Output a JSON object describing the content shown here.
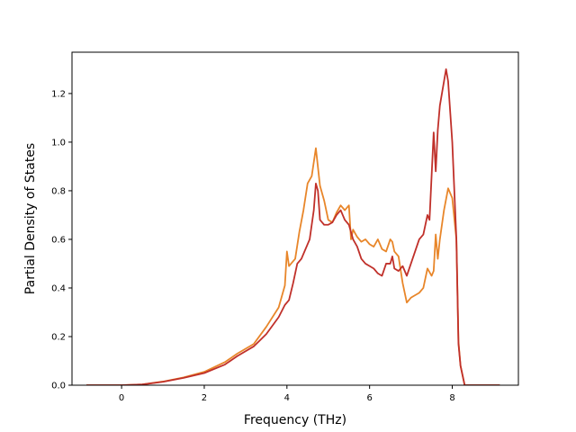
{
  "chart_data": {
    "type": "line",
    "xlabel": "Frequency (THz)",
    "ylabel": "Partial Density of States",
    "xlim": [
      -1.2,
      9.6
    ],
    "ylim": [
      0.0,
      1.37
    ],
    "xticks": [
      0,
      2,
      4,
      6,
      8
    ],
    "yticks": [
      0.0,
      0.2,
      0.4,
      0.6,
      0.8,
      1.0,
      1.2
    ],
    "xtick_labels": [
      "0",
      "2",
      "4",
      "6",
      "8"
    ],
    "ytick_labels": [
      "0.0",
      "0.2",
      "0.4",
      "0.6",
      "0.8",
      "1.0",
      "1.2"
    ],
    "grid": false,
    "series": [
      {
        "color": "#e8862a",
        "points": [
          [
            -0.85,
            0.0
          ],
          [
            0.0,
            0.0
          ],
          [
            0.5,
            0.003
          ],
          [
            1.0,
            0.015
          ],
          [
            1.5,
            0.032
          ],
          [
            2.0,
            0.055
          ],
          [
            2.5,
            0.095
          ],
          [
            2.8,
            0.13
          ],
          [
            3.2,
            0.17
          ],
          [
            3.5,
            0.24
          ],
          [
            3.8,
            0.32
          ],
          [
            3.95,
            0.41
          ],
          [
            4.0,
            0.55
          ],
          [
            4.05,
            0.49
          ],
          [
            4.1,
            0.5
          ],
          [
            4.2,
            0.52
          ],
          [
            4.3,
            0.63
          ],
          [
            4.4,
            0.72
          ],
          [
            4.5,
            0.83
          ],
          [
            4.6,
            0.86
          ],
          [
            4.7,
            0.975
          ],
          [
            4.8,
            0.82
          ],
          [
            4.9,
            0.76
          ],
          [
            5.0,
            0.68
          ],
          [
            5.1,
            0.67
          ],
          [
            5.2,
            0.71
          ],
          [
            5.3,
            0.74
          ],
          [
            5.4,
            0.72
          ],
          [
            5.5,
            0.74
          ],
          [
            5.55,
            0.6
          ],
          [
            5.6,
            0.64
          ],
          [
            5.7,
            0.61
          ],
          [
            5.8,
            0.59
          ],
          [
            5.9,
            0.6
          ],
          [
            6.0,
            0.58
          ],
          [
            6.1,
            0.57
          ],
          [
            6.2,
            0.6
          ],
          [
            6.3,
            0.56
          ],
          [
            6.4,
            0.55
          ],
          [
            6.5,
            0.6
          ],
          [
            6.55,
            0.59
          ],
          [
            6.6,
            0.55
          ],
          [
            6.7,
            0.53
          ],
          [
            6.8,
            0.42
          ],
          [
            6.9,
            0.34
          ],
          [
            7.0,
            0.36
          ],
          [
            7.2,
            0.38
          ],
          [
            7.3,
            0.4
          ],
          [
            7.4,
            0.48
          ],
          [
            7.5,
            0.45
          ],
          [
            7.55,
            0.47
          ],
          [
            7.6,
            0.62
          ],
          [
            7.65,
            0.52
          ],
          [
            7.7,
            0.6
          ],
          [
            7.8,
            0.72
          ],
          [
            7.9,
            0.81
          ],
          [
            8.0,
            0.77
          ],
          [
            8.1,
            0.6
          ],
          [
            8.15,
            0.18
          ],
          [
            8.2,
            0.08
          ],
          [
            8.3,
            0.0
          ],
          [
            9.15,
            0.0
          ]
        ]
      },
      {
        "color": "#c0302a",
        "points": [
          [
            -0.85,
            0.0
          ],
          [
            0.0,
            0.0
          ],
          [
            0.5,
            0.003
          ],
          [
            1.0,
            0.014
          ],
          [
            1.5,
            0.03
          ],
          [
            2.0,
            0.05
          ],
          [
            2.5,
            0.085
          ],
          [
            2.8,
            0.12
          ],
          [
            3.2,
            0.16
          ],
          [
            3.5,
            0.21
          ],
          [
            3.8,
            0.28
          ],
          [
            3.95,
            0.33
          ],
          [
            4.05,
            0.35
          ],
          [
            4.15,
            0.42
          ],
          [
            4.25,
            0.5
          ],
          [
            4.35,
            0.52
          ],
          [
            4.45,
            0.56
          ],
          [
            4.55,
            0.6
          ],
          [
            4.65,
            0.72
          ],
          [
            4.7,
            0.83
          ],
          [
            4.75,
            0.8
          ],
          [
            4.8,
            0.68
          ],
          [
            4.9,
            0.66
          ],
          [
            5.0,
            0.66
          ],
          [
            5.1,
            0.67
          ],
          [
            5.2,
            0.7
          ],
          [
            5.3,
            0.72
          ],
          [
            5.4,
            0.68
          ],
          [
            5.5,
            0.66
          ],
          [
            5.6,
            0.6
          ],
          [
            5.7,
            0.57
          ],
          [
            5.8,
            0.52
          ],
          [
            5.9,
            0.5
          ],
          [
            6.0,
            0.49
          ],
          [
            6.1,
            0.48
          ],
          [
            6.2,
            0.46
          ],
          [
            6.3,
            0.45
          ],
          [
            6.4,
            0.5
          ],
          [
            6.5,
            0.5
          ],
          [
            6.55,
            0.53
          ],
          [
            6.6,
            0.48
          ],
          [
            6.7,
            0.47
          ],
          [
            6.8,
            0.49
          ],
          [
            6.9,
            0.45
          ],
          [
            7.0,
            0.5
          ],
          [
            7.1,
            0.55
          ],
          [
            7.2,
            0.6
          ],
          [
            7.3,
            0.62
          ],
          [
            7.4,
            0.7
          ],
          [
            7.45,
            0.68
          ],
          [
            7.55,
            1.04
          ],
          [
            7.6,
            0.88
          ],
          [
            7.65,
            1.05
          ],
          [
            7.7,
            1.15
          ],
          [
            7.8,
            1.25
          ],
          [
            7.85,
            1.3
          ],
          [
            7.9,
            1.25
          ],
          [
            8.0,
            1.0
          ],
          [
            8.05,
            0.8
          ],
          [
            8.1,
            0.6
          ],
          [
            8.15,
            0.17
          ],
          [
            8.2,
            0.08
          ],
          [
            8.3,
            0.0
          ],
          [
            9.15,
            0.0
          ]
        ]
      }
    ]
  }
}
